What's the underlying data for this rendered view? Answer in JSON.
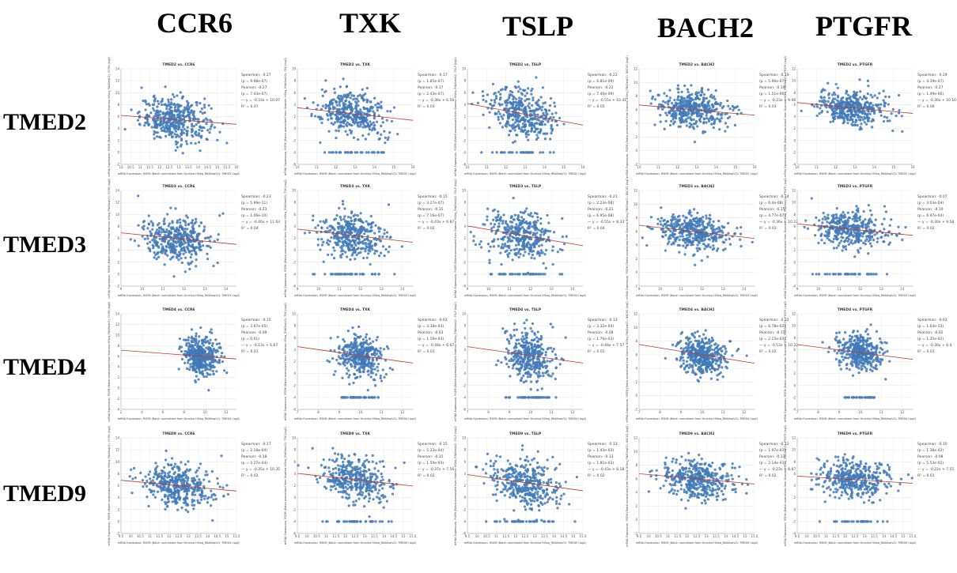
{
  "col_headers": [
    "CCR6",
    "TXK",
    "TSLP",
    "BACH2",
    "PTGFR"
  ],
  "row_headers": [
    "TMED2",
    "TMED3",
    "TMED4",
    "TMED9"
  ],
  "style": {
    "point_color": "#4a86c8",
    "point_edge": "#2e5f9a",
    "fit_color": "#c0392b"
  },
  "chart_data": [
    {
      "type": "scatter",
      "row": "TMED2",
      "col": "CCR6",
      "title": "TMED2 vs. CCR6",
      "xlim": [
        10,
        16
      ],
      "ylim": [
        -2,
        14
      ],
      "xticks": [
        10,
        10.5,
        11,
        11.5,
        12,
        12.5,
        13,
        13.5,
        14,
        14.5,
        15,
        15.5,
        16
      ],
      "yticks": [
        -2,
        0,
        2,
        4,
        6,
        8,
        10,
        12,
        14
      ],
      "cx": 12.8,
      "cy": 5.5,
      "sx": 0.9,
      "sy": 1.8,
      "n": 420,
      "floor": null,
      "slope": -0.25,
      "xlabel": "mRNA Expression, RSEM (Batch normalized from Illumina HiSeq_RNASeqV2): TMED2 (log2)",
      "ylabel": "mRNA Expression, RSEM (Batch normalized from Illumina HiSeq_RNASeqV2): CCR6 (log2)",
      "stats": [
        "Spearman: -0.27",
        "(p = 9.98e-07)",
        "Pearson: -0.27",
        "(p = 7.43e-07)",
        "— y = -0.33x + 10.07",
        "R² = 0.07"
      ]
    },
    {
      "type": "scatter",
      "row": "TMED2",
      "col": "TXK",
      "title": "TMED2 vs. TXK",
      "xlim": [
        10,
        16
      ],
      "ylim": [
        -6,
        10
      ],
      "xticks": [
        10,
        11,
        12,
        13,
        14,
        15,
        16
      ],
      "yticks": [
        -6,
        -4,
        -2,
        0,
        2,
        4,
        6,
        8,
        10
      ],
      "cx": 12.8,
      "cy": 2.5,
      "sx": 0.9,
      "sy": 1.8,
      "n": 420,
      "floor": -4,
      "slope": -0.35,
      "xlabel": "mRNA Expression, RSEM (Batch normalized from Illumina HiSeq_RNASeqV2): TMED2 (log2)",
      "ylabel": "mRNA Expression, RSEM (Batch normalized from Illumina HiSeq_RNASeqV2): TXK (log2)",
      "stats": [
        "Spearman: -0.17",
        "(p = 1.85e-07)",
        "Pearson: -0.17",
        "(p = 2.43e-07)",
        "— y = -0.36x + 6.56",
        "R² = 0.03"
      ]
    },
    {
      "type": "scatter",
      "row": "TMED2",
      "col": "TSLP",
      "title": "TMED2 vs. TSLP",
      "xlim": [
        10,
        16
      ],
      "ylim": [
        -6,
        10
      ],
      "xticks": [
        10,
        11,
        12,
        13,
        14,
        15,
        16
      ],
      "yticks": [
        -6,
        -4,
        -2,
        0,
        2,
        4,
        6,
        8,
        10
      ],
      "cx": 12.8,
      "cy": 2.5,
      "sx": 0.9,
      "sy": 2.0,
      "n": 420,
      "floor": -4,
      "slope": -0.6,
      "xlabel": "mRNA Expression, RSEM (Batch normalized from Illumina HiSeq_RNASeqV2): TMED2 (log2)",
      "ylabel": "mRNA Expression, RSEM (Batch normalized from Illumina HiSeq_RNASeqV2): TSLP (log2)",
      "stats": [
        "Spearman: -0.22",
        "(p = 6.81e-09)",
        "Pearson: -0.22",
        "(p = 7.40e-09)",
        "— y = -0.55x + 10.41",
        "R² = 0.05"
      ]
    },
    {
      "type": "scatter",
      "row": "TMED2",
      "col": "BACH2",
      "title": "TMED2 vs. BACH2",
      "xlim": [
        10,
        16
      ],
      "ylim": [
        -2,
        12
      ],
      "xticks": [
        10,
        11,
        12,
        13,
        14,
        15,
        16
      ],
      "yticks": [
        -2,
        0,
        2,
        4,
        6,
        8,
        10,
        12
      ],
      "cx": 12.8,
      "cy": 6.0,
      "sx": 0.9,
      "sy": 1.4,
      "n": 420,
      "floor": null,
      "slope": -0.25,
      "xlabel": "mRNA Expression, RSEM (Batch normalized from Illumina HiSeq_RNASeqV2): TMED2 (log2)",
      "ylabel": "mRNA Expression, RSEM (Batch normalized from Illumina HiSeq_RNASeqV2): BACH2 (log2)",
      "stats": [
        "Spearman: -0.19",
        "(p = 5.96e-07)",
        "Pearson: -0.19",
        "(p = 1.51e-06)",
        "— y = -0.23x + 9.06",
        "R² = 0.03"
      ]
    },
    {
      "type": "scatter",
      "row": "TMED2",
      "col": "PTGFR",
      "title": "TMED2 vs. PTGFR",
      "xlim": [
        10,
        16
      ],
      "ylim": [
        -4,
        12
      ],
      "xticks": [
        10,
        11,
        12,
        13,
        14,
        15,
        16
      ],
      "yticks": [
        -4,
        -2,
        0,
        2,
        4,
        6,
        8,
        10,
        12
      ],
      "cx": 12.8,
      "cy": 5.5,
      "sx": 0.9,
      "sy": 1.5,
      "n": 420,
      "floor": null,
      "slope": -0.3,
      "xlabel": "mRNA Expression, RSEM (Batch normalized from Illumina HiSeq_RNASeqV2): TMED2 (log2)",
      "ylabel": "mRNA Expression, RSEM (Batch normalized from Illumina HiSeq_RNASeqV2): PTGFR (log2)",
      "stats": [
        "Spearman: -0.29",
        "(p = 4.39e-07)",
        "Pearson: -0.27",
        "(p = 1.49e-06)",
        "— y = -0.30x + 10.10",
        "R² = 0.06"
      ]
    },
    {
      "type": "scatter",
      "row": "TMED3",
      "col": "CCR6",
      "title": "TMED3 vs. CCR6",
      "xlim": [
        9,
        14.5
      ],
      "ylim": [
        -2,
        14
      ],
      "xticks": [
        9,
        10,
        11,
        12,
        13,
        14
      ],
      "yticks": [
        -2,
        0,
        2,
        4,
        6,
        8,
        10,
        12,
        14
      ],
      "cx": 11.6,
      "cy": 6.0,
      "sx": 0.8,
      "sy": 1.8,
      "n": 420,
      "floor": null,
      "slope": -0.35,
      "xlabel": "mRNA Expression, RSEM (Batch normalized from Illumina HiSeq_RNASeqV2): TMED3 (log2)",
      "ylabel": "mRNA Expression, RSEM (Batch normalized from Illumina HiSeq_RNASeqV2): CCR6 (log2)",
      "stats": [
        "Spearman: -0.23",
        "(p = 5.99e-11)",
        "Pearson: -0.23",
        "(p = 1.06e-10)",
        "— y = -0.46x + 11.63",
        "R² = 0.04"
      ]
    },
    {
      "type": "scatter",
      "row": "TMED3",
      "col": "TXK",
      "title": "TMED3 vs. TXK",
      "xlim": [
        9,
        14.5
      ],
      "ylim": [
        -6,
        10
      ],
      "xticks": [
        9,
        10,
        11,
        12,
        13,
        14
      ],
      "yticks": [
        -6,
        -4,
        -2,
        0,
        2,
        4,
        6,
        8,
        10
      ],
      "cx": 11.6,
      "cy": 2.5,
      "sx": 0.8,
      "sy": 1.8,
      "n": 420,
      "floor": -4,
      "slope": -0.4,
      "xlabel": "mRNA Expression, RSEM (Batch normalized from Illumina HiSeq_RNASeqV2): TMED3 (log2)",
      "ylabel": "mRNA Expression, RSEM (Batch normalized from Illumina HiSeq_RNASeqV2): TXK (log2)",
      "stats": [
        "Spearman: -0.15",
        "(p = 3.27e-07)",
        "Pearson: -0.15",
        "(p = 7.16e-07)",
        "— y = -0.43x + 6.87",
        "R² = 0.02"
      ]
    },
    {
      "type": "scatter",
      "row": "TMED3",
      "col": "TSLP",
      "title": "TMED3 vs. TSLP",
      "xlim": [
        9,
        14.5
      ],
      "ylim": [
        -6,
        10
      ],
      "xticks": [
        9,
        10,
        11,
        12,
        13,
        14
      ],
      "yticks": [
        -6,
        -4,
        -2,
        0,
        2,
        4,
        6,
        8,
        10
      ],
      "cx": 11.6,
      "cy": 2.5,
      "sx": 0.8,
      "sy": 2.0,
      "n": 420,
      "floor": -4,
      "slope": -0.6,
      "xlabel": "mRNA Expression, RSEM (Batch normalized from Illumina HiSeq_RNASeqV2): TMED3 (log2)",
      "ylabel": "mRNA Expression, RSEM (Batch normalized from Illumina HiSeq_RNASeqV2): TSLP (log2)",
      "stats": [
        "Spearman: -0.21",
        "(p = 2.23e-08)",
        "Pearson: -0.21",
        "(p = 6.95e-08)",
        "— y = -0.55x + 8.33",
        "R² = 0.04"
      ]
    },
    {
      "type": "scatter",
      "row": "TMED3",
      "col": "BACH2",
      "title": "TMED3 vs. BACH2",
      "xlim": [
        9,
        14.5
      ],
      "ylim": [
        -2,
        12
      ],
      "xticks": [
        9,
        10,
        11,
        12,
        13,
        14
      ],
      "yticks": [
        -2,
        0,
        2,
        4,
        6,
        8,
        10,
        12
      ],
      "cx": 11.6,
      "cy": 6.0,
      "sx": 0.8,
      "sy": 1.4,
      "n": 420,
      "floor": null,
      "slope": -0.35,
      "xlabel": "mRNA Expression, RSEM (Batch normalized from Illumina HiSeq_RNASeqV2): TMED3 (log2)",
      "ylabel": "mRNA Expression, RSEM (Batch normalized from Illumina HiSeq_RNASeqV2): BACH2 (log2)",
      "stats": [
        "Spearman: -0.14",
        "(p = 6.4e-08)",
        "Pearson: -0.15",
        "(p = 4.77e-07)",
        "— y = -0.36x + 10.22",
        "R² = 0.03"
      ]
    },
    {
      "type": "scatter",
      "row": "TMED3",
      "col": "PTGFR",
      "title": "TMED3 vs. PTGFR",
      "xlim": [
        9,
        14.5
      ],
      "ylim": [
        -4,
        12
      ],
      "xticks": [
        9,
        10,
        11,
        12,
        13,
        14
      ],
      "yticks": [
        -4,
        -2,
        0,
        2,
        4,
        6,
        8,
        10,
        12
      ],
      "cx": 11.6,
      "cy": 5.5,
      "sx": 0.8,
      "sy": 1.5,
      "n": 420,
      "floor": -2,
      "slope": -0.35,
      "xlabel": "mRNA Expression, RSEM (Batch normalized from Illumina HiSeq_RNASeqV2): TMED3 (log2)",
      "ylabel": "mRNA Expression, RSEM (Batch normalized from Illumina HiSeq_RNASeqV2): PTGFR (log2)",
      "stats": [
        "Spearman: -0.07",
        "(p = 3.03e-04)",
        "Pearson: -0.10",
        "(p = 6.97e-04)",
        "— y = -0.30x + 9.58",
        "R² = 0.02"
      ]
    },
    {
      "type": "scatter",
      "row": "TMED4",
      "col": "CCR6",
      "title": "TMED4 vs. CCR6",
      "xlim": [
        2,
        13
      ],
      "ylim": [
        -4,
        14
      ],
      "xticks": [
        2,
        4,
        6,
        8,
        10,
        12
      ],
      "yticks": [
        -4,
        -2,
        0,
        2,
        4,
        6,
        8,
        10,
        12,
        14
      ],
      "cx": 9.6,
      "cy": 6.0,
      "sx": 0.8,
      "sy": 1.8,
      "n": 420,
      "floor": null,
      "slope": -0.15,
      "xlabel": "mRNA Expression, RSEM (Batch normalized from Illumina HiSeq_RNASeqV2): TMED4 (log2)",
      "ylabel": "mRNA Expression, RSEM (Batch normalized from Illumina HiSeq_RNASeqV2): CCR6 (log2)",
      "stats": [
        "Spearman: -0.15",
        "(p = 3.97e-05)",
        "Pearson: -0.09",
        "(p = 0.01)",
        "— y = -0.13x + 6.67",
        "R² = 0.01"
      ]
    },
    {
      "type": "scatter",
      "row": "TMED4",
      "col": "TXK",
      "title": "TMED4 vs. TXK",
      "xlim": [
        7,
        12.5
      ],
      "ylim": [
        -6,
        10
      ],
      "xticks": [
        7,
        8,
        9,
        10,
        11,
        12
      ],
      "yticks": [
        -6,
        -4,
        -2,
        0,
        2,
        4,
        6,
        8,
        10
      ],
      "cx": 10.0,
      "cy": 3.0,
      "sx": 0.55,
      "sy": 1.8,
      "n": 420,
      "floor": -4,
      "slope": -0.5,
      "xlabel": "mRNA Expression, RSEM (Batch normalized from Illumina HiSeq_RNASeqV2): TMED4 (log2)",
      "ylabel": "mRNA Expression, RSEM (Batch normalized from Illumina HiSeq_RNASeqV2): TXK (log2)",
      "stats": [
        "Spearman: -0.03",
        "(p = 3.38e-03)",
        "Pearson: -0.03",
        "(p = 1.16e-03)",
        "— y = -0.48x + 6.67",
        "R² = 0.01"
      ]
    },
    {
      "type": "scatter",
      "row": "TMED4",
      "col": "TSLP",
      "title": "TMED4 vs. TSLP",
      "xlim": [
        7,
        12.5
      ],
      "ylim": [
        -6,
        10
      ],
      "xticks": [
        7,
        8,
        9,
        10,
        11,
        12
      ],
      "yticks": [
        -6,
        -4,
        -2,
        0,
        2,
        4,
        6,
        8,
        10
      ],
      "cx": 10.0,
      "cy": 3.0,
      "sx": 0.55,
      "sy": 2.0,
      "n": 420,
      "floor": -4,
      "slope": -0.5,
      "xlabel": "mRNA Expression, RSEM (Batch normalized from Illumina HiSeq_RNASeqV2): TMED4 (log2)",
      "ylabel": "mRNA Expression, RSEM (Batch normalized from Illumina HiSeq_RNASeqV2): TSLP (log2)",
      "stats": [
        "Spearman: -0.13",
        "(p = 3.32e-04)",
        "Pearson: -0.08",
        "(p = 1.76e-03)",
        "— y = -0.48x + 7.57",
        "R² = 0.01"
      ]
    },
    {
      "type": "scatter",
      "row": "TMED4",
      "col": "BACH2",
      "title": "TMED4 vs. BACH2",
      "xlim": [
        7,
        12.5
      ],
      "ylim": [
        -2,
        12
      ],
      "xticks": [
        7,
        8,
        9,
        10,
        11,
        12
      ],
      "yticks": [
        -2,
        0,
        2,
        4,
        6,
        8,
        10,
        12
      ],
      "cx": 10.0,
      "cy": 6.0,
      "sx": 0.55,
      "sy": 1.4,
      "n": 420,
      "floor": null,
      "slope": -0.5,
      "xlabel": "mRNA Expression, RSEM (Batch normalized from Illumina HiSeq_RNASeqV2): TMED4 (log2)",
      "ylabel": "mRNA Expression, RSEM (Batch normalized from Illumina HiSeq_RNASeqV2): BACH2 (log2)",
      "stats": [
        "Spearman: -0.22",
        "(p = 6.78e-02)",
        "Pearson: -0.15",
        "(p = 2.15e-03)",
        "— y = -0.53x + 10.22",
        "R² = 0.02"
      ]
    },
    {
      "type": "scatter",
      "row": "TMED4",
      "col": "PTGFR",
      "title": "TMED4 vs. PTGFR",
      "xlim": [
        7,
        12.5
      ],
      "ylim": [
        -4,
        12
      ],
      "xticks": [
        7,
        8,
        9,
        10,
        11,
        12
      ],
      "yticks": [
        -4,
        -2,
        0,
        2,
        4,
        6,
        8,
        10,
        12
      ],
      "cx": 10.0,
      "cy": 5.5,
      "sx": 0.55,
      "sy": 1.5,
      "n": 420,
      "floor": -2,
      "slope": -0.45,
      "xlabel": "mRNA Expression, RSEM (Batch normalized from Illumina HiSeq_RNASeqV2): TMED4 (log2)",
      "ylabel": "mRNA Expression, RSEM (Batch normalized from Illumina HiSeq_RNASeqV2): PTGFR (log2)",
      "stats": [
        "Spearman: -0.03",
        "(p = 1.64e-13)",
        "Pearson: -0.02",
        "(p = 1.35e-02)",
        "— y = -0.30x + 8.4",
        "R² = 0.01"
      ]
    },
    {
      "type": "scatter",
      "row": "TMED9",
      "col": "CCR6",
      "title": "TMED9 vs. CCR6",
      "xlim": [
        9.5,
        15.5
      ],
      "ylim": [
        -2,
        14
      ],
      "xticks": [
        9.5,
        10,
        10.5,
        11,
        11.5,
        12,
        12.5,
        13,
        13.5,
        14,
        14.5,
        15,
        15.5
      ],
      "yticks": [
        -2,
        0,
        2,
        4,
        6,
        8,
        10,
        12,
        14
      ],
      "cx": 12.5,
      "cy": 6.0,
      "sx": 0.9,
      "sy": 1.8,
      "n": 420,
      "floor": null,
      "slope": -0.3,
      "xlabel": "mRNA Expression, RSEM (Batch normalized from Illumina HiSeq_RNASeqV2): TMED9 (log2)",
      "ylabel": "mRNA Expression, RSEM (Batch normalized from Illumina HiSeq_RNASeqV2): CCR6 (log2)",
      "stats": [
        "Spearman: -0.17",
        "(p = 2.18e-04)",
        "Pearson: -0.18",
        "(p = 3.27e-04)",
        "— y = -0.35x + 10.35",
        "R² = 0.02"
      ]
    },
    {
      "type": "scatter",
      "row": "TMED9",
      "col": "TXK",
      "title": "TMED9 vs. TXK",
      "xlim": [
        9.5,
        15.5
      ],
      "ylim": [
        -6,
        10
      ],
      "xticks": [
        9.5,
        10,
        10.5,
        11,
        11.5,
        12,
        12.5,
        13,
        13.5,
        14,
        14.5,
        15,
        15.5
      ],
      "yticks": [
        -6,
        -4,
        -2,
        0,
        2,
        4,
        6,
        8,
        10
      ],
      "cx": 12.5,
      "cy": 3.0,
      "sx": 0.9,
      "sy": 1.8,
      "n": 420,
      "floor": -4,
      "slope": -0.35,
      "xlabel": "mRNA Expression, RSEM (Batch normalized from Illumina HiSeq_RNASeqV2): TMED9 (log2)",
      "ylabel": "mRNA Expression, RSEM (Batch normalized from Illumina HiSeq_RNASeqV2): TXK (log2)",
      "stats": [
        "Spearman: -0.15",
        "(p = 5.23e-04)",
        "Pearson: -0.15",
        "(p = 1.59e-03)",
        "— y = -0.37x + 7.56",
        "R² = 0.02"
      ]
    },
    {
      "type": "scatter",
      "row": "TMED9",
      "col": "TSLP",
      "title": "TMED9 vs. TSLP",
      "xlim": [
        9.5,
        15.5
      ],
      "ylim": [
        -6,
        10
      ],
      "xticks": [
        9.5,
        10,
        10.5,
        11,
        11.5,
        12,
        12.5,
        13,
        13.5,
        14,
        14.5,
        15,
        15.5
      ],
      "yticks": [
        -6,
        -4,
        -2,
        0,
        2,
        4,
        6,
        8,
        10
      ],
      "cx": 12.5,
      "cy": 2.5,
      "sx": 0.9,
      "sy": 2.0,
      "n": 420,
      "floor": -4,
      "slope": -0.45,
      "xlabel": "mRNA Expression, RSEM (Batch normalized from Illumina HiSeq_RNASeqV2): TMED9 (log2)",
      "ylabel": "mRNA Expression, RSEM (Batch normalized from Illumina HiSeq_RNASeqV2): TSLP (log2)",
      "stats": [
        "Spearman: -0.13",
        "(p = 1.43e-03)",
        "Pearson: -0.13",
        "(p = 1.81e-03)",
        "— y = -0.43x + 8.18",
        "R² = 0.02"
      ]
    },
    {
      "type": "scatter",
      "row": "TMED9",
      "col": "BACH2",
      "title": "TMED9 vs. BACH2",
      "xlim": [
        9.5,
        15.5
      ],
      "ylim": [
        -2,
        12
      ],
      "xticks": [
        9.5,
        10,
        10.5,
        11,
        11.5,
        12,
        12.5,
        13,
        13.5,
        14,
        14.5,
        15,
        15.5
      ],
      "yticks": [
        -2,
        0,
        2,
        4,
        6,
        8,
        10,
        12
      ],
      "cx": 12.5,
      "cy": 6.0,
      "sx": 0.9,
      "sy": 1.4,
      "n": 420,
      "floor": null,
      "slope": -0.25,
      "xlabel": "mRNA Expression, RSEM (Batch normalized from Illumina HiSeq_RNASeqV2): TMED9 (log2)",
      "ylabel": "mRNA Expression, RSEM (Batch normalized from Illumina HiSeq_RNASeqV2): BACH2 (log2)",
      "stats": [
        "Spearman: -0.13",
        "(p = 1.97e-03)",
        "Pearson: -0.13",
        "(p = 2.14e-03)",
        "— y = -0.23x + 8.87",
        "R² = 0.02"
      ]
    },
    {
      "type": "scatter",
      "row": "TMED9",
      "col": "PTGFR",
      "title": "TMED9 vs. PTGFR",
      "xlim": [
        9.5,
        15.5
      ],
      "ylim": [
        -4,
        12
      ],
      "xticks": [
        9.5,
        10,
        10.5,
        11,
        11.5,
        12,
        12.5,
        13,
        13.5,
        14,
        14.5,
        15,
        15.5
      ],
      "yticks": [
        -4,
        -2,
        0,
        2,
        4,
        6,
        8,
        10,
        12
      ],
      "cx": 12.5,
      "cy": 5.0,
      "sx": 0.9,
      "sy": 1.5,
      "n": 420,
      "floor": -2,
      "slope": -0.2,
      "xlabel": "mRNA Expression, RSEM (Batch normalized from Illumina HiSeq_RNASeqV2): TMED9 (log2)",
      "ylabel": "mRNA Expression, RSEM (Batch normalized from Illumina HiSeq_RNASeqV2): PTGFR (log2)",
      "stats": [
        "Spearman: -0.10",
        "(p = 1.38e-02)",
        "Pearson: -0.08",
        "(p = 5.53e-02)",
        "— y = -0.22x + 7.55",
        "R² = 0.01"
      ]
    }
  ]
}
